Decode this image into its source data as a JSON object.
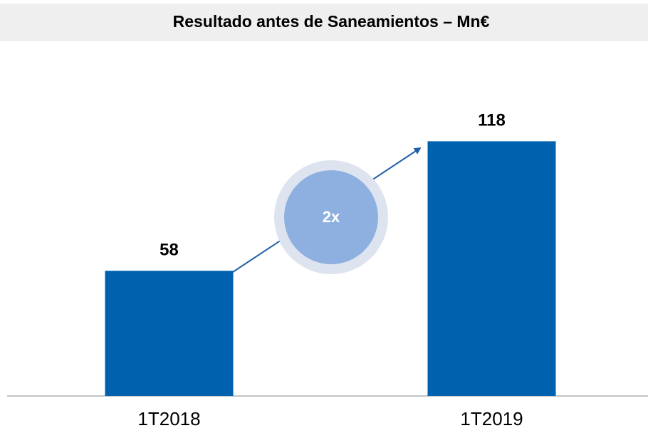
{
  "chart_data": {
    "type": "bar",
    "title": "Resultado antes de Saneamientos – Mn€",
    "categories": [
      "1T2018",
      "1T2019"
    ],
    "values": [
      58,
      118
    ],
    "color": "#0061ae",
    "ylim": [
      0,
      130
    ],
    "annotation": "2x"
  }
}
